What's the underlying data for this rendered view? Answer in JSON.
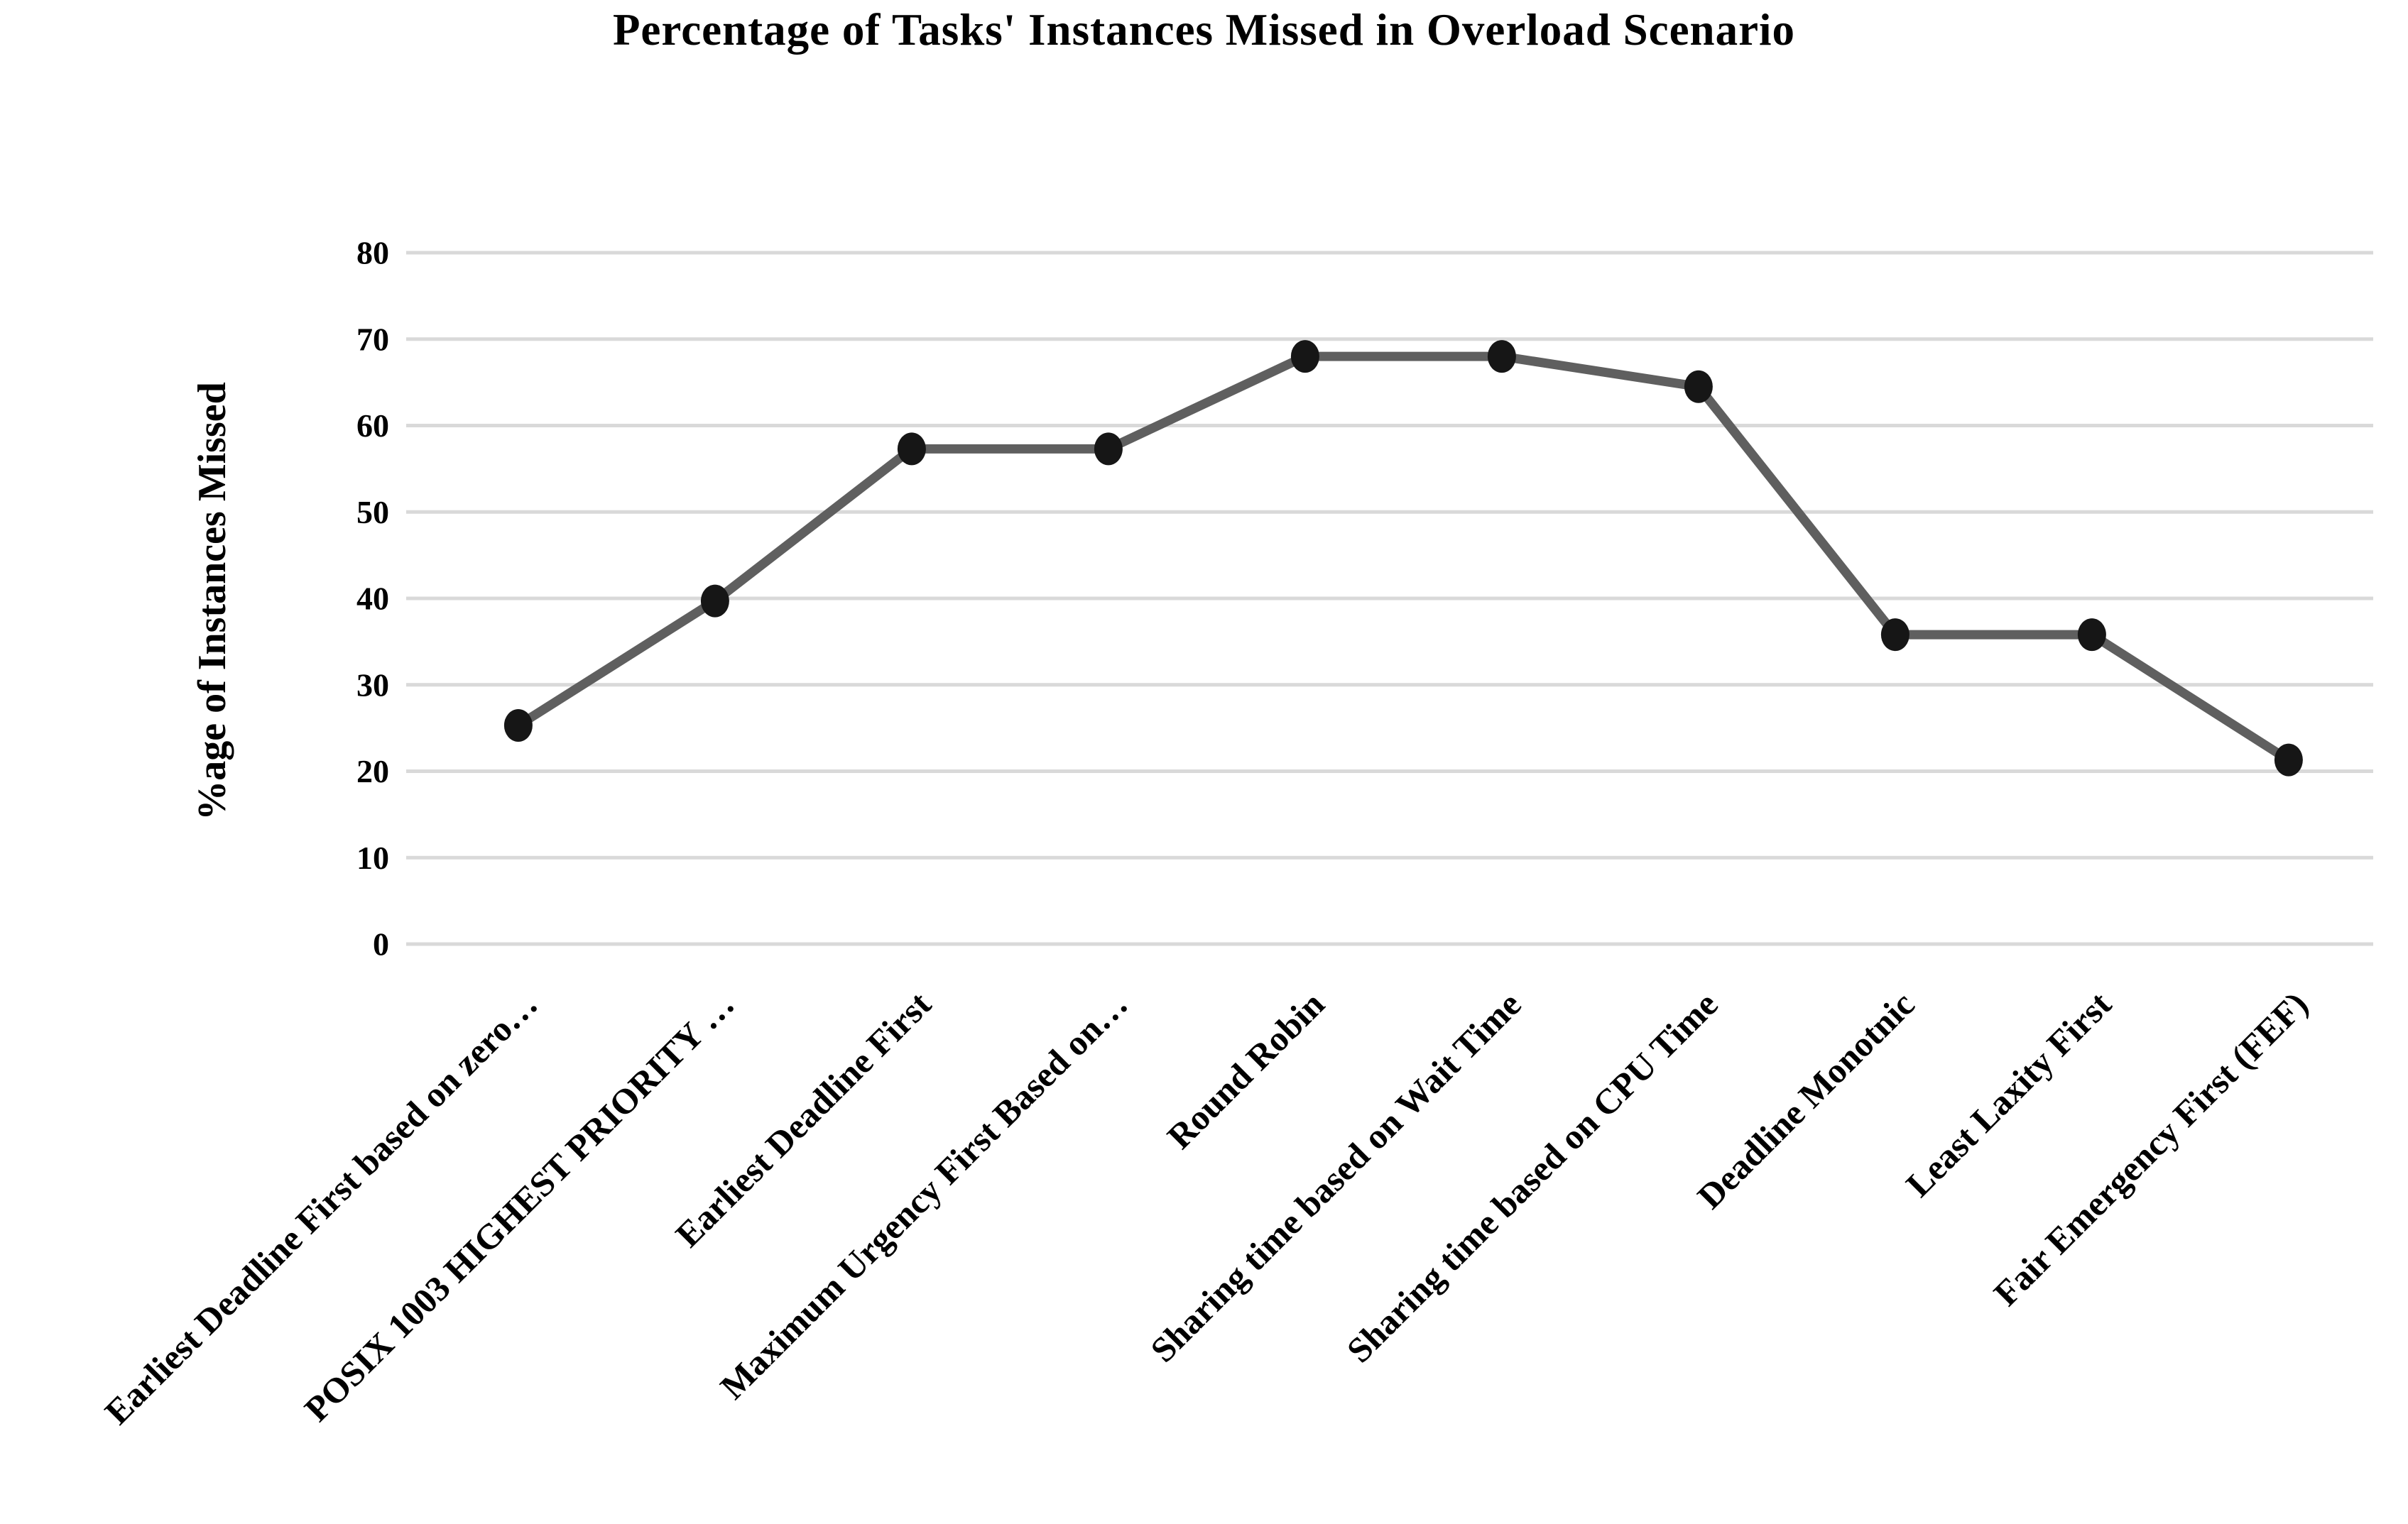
{
  "title": "Percentage of Tasks' Instances Missed in Overload Scenario",
  "chart_data": {
    "type": "line",
    "title": "Percentage of Tasks' Instances Missed in Overload Scenario",
    "xlabel": "",
    "ylabel": "%age of Instances Missed",
    "ylim": [
      0,
      80
    ],
    "yticks": [
      0,
      10,
      20,
      30,
      40,
      50,
      60,
      70,
      80
    ],
    "grid": "horizontal",
    "legend_position": "none",
    "categories": [
      "Earliest Deadline First based on zero…",
      "POSIX 1003 HIGHEST PRIORITY …",
      "Earliest Deadline First",
      "Maximum Urgency First Based on…",
      "Round Robin",
      "Sharing time based on Wait Time",
      "Sharing time based on CPU Time",
      "Deadline Monotnic",
      "Least Laxity First",
      "Fair Emergency First (FEF)"
    ],
    "series": [
      {
        "name": "%age of Instances Missed",
        "values": [
          25.3,
          39.7,
          57.3,
          57.3,
          68,
          68,
          64.5,
          35.8,
          35.8,
          21.3
        ]
      }
    ]
  },
  "colors": {
    "line": "#5f5f5f",
    "marker": "#161616",
    "gridline": "#d9d9d9",
    "text": "#000000",
    "background": "#ffffff"
  }
}
